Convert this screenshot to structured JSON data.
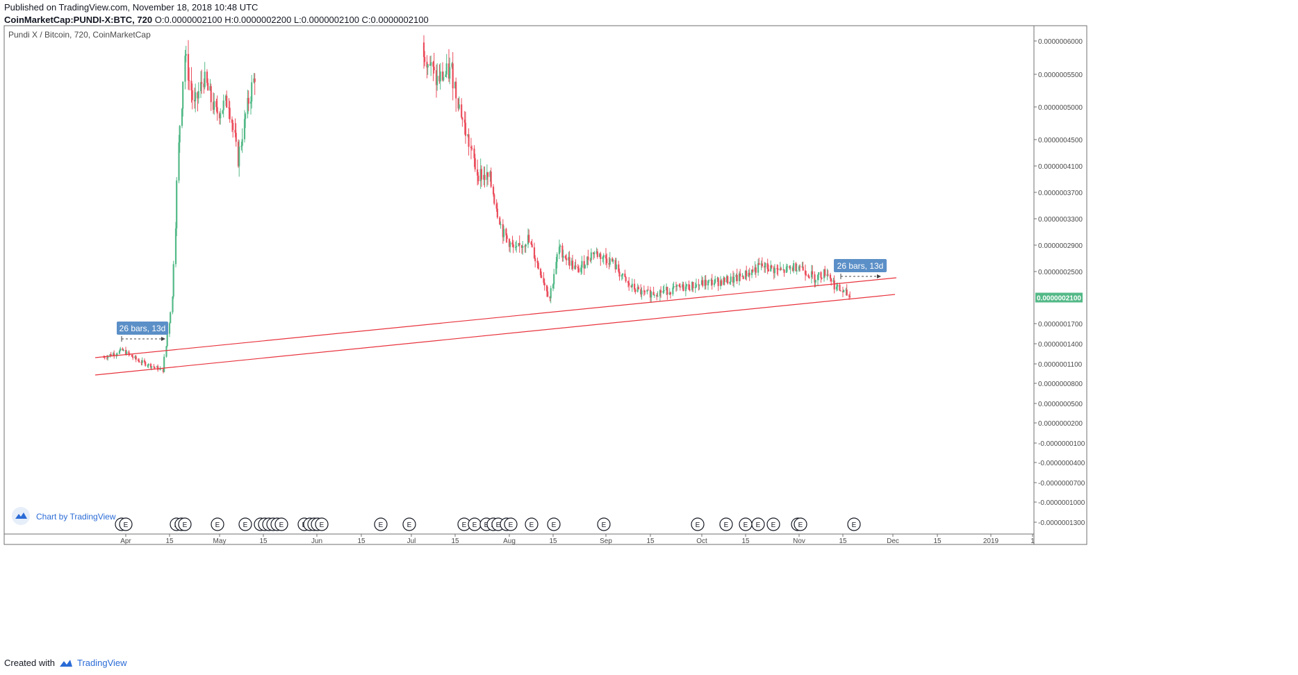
{
  "header": {
    "published": "Published on TradingView.com, November 18, 2018 10:48 UTC",
    "symbol": "CoinMarketCap:PUNDI-X:BTC, 720",
    "ohlc": "O:0.0000002100 H:0.0000002200 L:0.0000002100 C:0.0000002100"
  },
  "chart_title": "Pundi X / Bitcoin, 720, CoinMarketCap",
  "watermark": "Chart by TradingView",
  "footer": {
    "created_with": "Created with",
    "brand": "TradingView"
  },
  "colors": {
    "up": "#53b987",
    "down": "#eb4d5c",
    "trendline": "#e8323c",
    "label_bg": "#5b8fc7",
    "price_tag": "#53b987"
  },
  "chart_data": {
    "type": "candlestick",
    "title": "Pundi X / Bitcoin, 720, CoinMarketCap",
    "y_axis_ticks": [
      "0.0000006000",
      "0.0000005500",
      "0.0000005000",
      "0.0000004500",
      "0.0000004100",
      "0.0000003700",
      "0.0000003300",
      "0.0000002900",
      "0.0000002500",
      "0.0000001700",
      "0.0000001400",
      "0.0000001100",
      "0.0000000800",
      "0.0000000500",
      "0.0000000200",
      "-0.0000000100",
      "-0.0000000400",
      "-0.0000000700",
      "-0.0000001000",
      "-0.0000001300"
    ],
    "x_axis_ticks": [
      "Apr",
      "15",
      "May",
      "15",
      "Jun",
      "15",
      "Jul",
      "15",
      "Aug",
      "15",
      "Sep",
      "15",
      "Oct",
      "15",
      "Nov",
      "15",
      "Dec",
      "15",
      "2019",
      "1"
    ],
    "last_price": "0.0000002100",
    "annotations": [
      "26 bars, 13d",
      "26 bars, 13d"
    ],
    "approx_close_path": [
      {
        "date": "2018-03-25",
        "close": 1.2e-07
      },
      {
        "date": "2018-03-31",
        "close": 1.3e-07
      },
      {
        "date": "2018-04-05",
        "close": 1.15e-07
      },
      {
        "date": "2018-04-13",
        "close": 1e-07
      },
      {
        "date": "2018-04-16",
        "close": 2.1e-07
      },
      {
        "date": "2018-04-18",
        "close": 4.4e-07
      },
      {
        "date": "2018-04-20",
        "close": 5.8e-07
      },
      {
        "date": "2018-04-23",
        "close": 5e-07
      },
      {
        "date": "2018-04-26",
        "close": 5.45e-07
      },
      {
        "date": "2018-04-30",
        "close": 4.9e-07
      },
      {
        "date": "2018-05-04",
        "close": 5.1e-07
      },
      {
        "date": "2018-05-07",
        "close": 4.2e-07
      },
      {
        "date": "2018-05-10",
        "close": 5e-07
      },
      {
        "date": "2018-05-13",
        "close": 5.6e-07
      },
      {
        "date": "2018-07-05",
        "close": 5.9e-07
      },
      {
        "date": "2018-07-09",
        "close": 5.4e-07
      },
      {
        "date": "2018-07-14",
        "close": 5.55e-07
      },
      {
        "date": "2018-07-18",
        "close": 4.7e-07
      },
      {
        "date": "2018-07-22",
        "close": 4e-07
      },
      {
        "date": "2018-07-26",
        "close": 3.9e-07
      },
      {
        "date": "2018-07-30",
        "close": 3.1e-07
      },
      {
        "date": "2018-08-03",
        "close": 2.8e-07
      },
      {
        "date": "2018-08-07",
        "close": 3e-07
      },
      {
        "date": "2018-08-11",
        "close": 2.5e-07
      },
      {
        "date": "2018-08-14",
        "close": 2.1e-07
      },
      {
        "date": "2018-08-17",
        "close": 2.85e-07
      },
      {
        "date": "2018-08-23",
        "close": 2.5e-07
      },
      {
        "date": "2018-08-28",
        "close": 2.8e-07
      },
      {
        "date": "2018-09-03",
        "close": 2.65e-07
      },
      {
        "date": "2018-09-08",
        "close": 2.3e-07
      },
      {
        "date": "2018-09-13",
        "close": 2.15e-07
      },
      {
        "date": "2018-09-22",
        "close": 2.22e-07
      },
      {
        "date": "2018-10-02",
        "close": 2.32e-07
      },
      {
        "date": "2018-10-12",
        "close": 2.38e-07
      },
      {
        "date": "2018-10-20",
        "close": 2.58e-07
      },
      {
        "date": "2018-10-27",
        "close": 2.5e-07
      },
      {
        "date": "2018-11-01",
        "close": 2.6e-07
      },
      {
        "date": "2018-11-06",
        "close": 2.4e-07
      },
      {
        "date": "2018-11-10",
        "close": 2.5e-07
      },
      {
        "date": "2018-11-13",
        "close": 2.25e-07
      },
      {
        "date": "2018-11-18",
        "close": 2.1e-07
      }
    ],
    "earnings_markers": [
      "E",
      "E",
      "E",
      "E",
      "E",
      "E",
      "E",
      "E",
      "E",
      "E",
      "E",
      "E",
      "E",
      "E",
      "E",
      "E",
      "E",
      "E",
      "E",
      "E",
      "E",
      "E",
      "E",
      "E",
      "E",
      "E",
      "E",
      "E"
    ]
  }
}
